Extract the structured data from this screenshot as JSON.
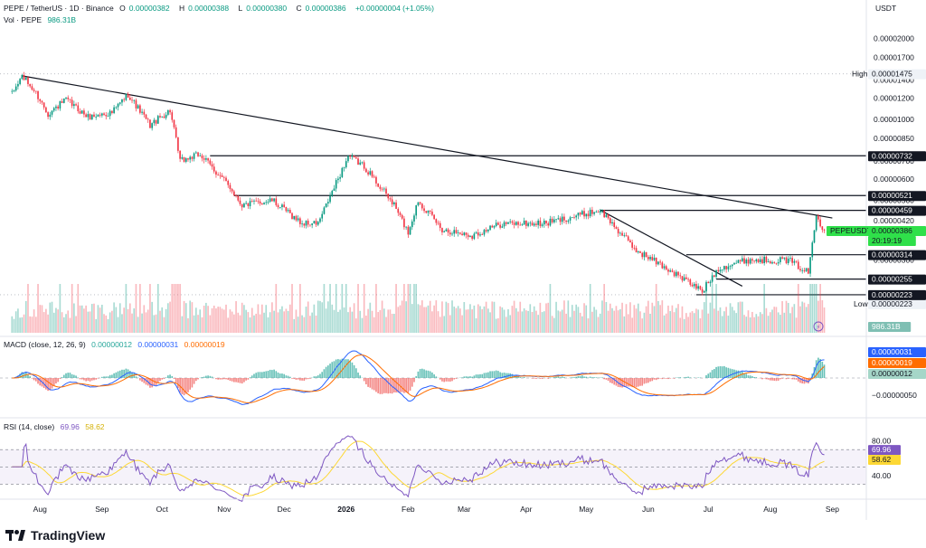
{
  "header": {
    "symbol": "PEPE / TetherUS · 1D · Binance",
    "o_label": "O",
    "o_value": "0.00000382",
    "h_label": "H",
    "h_value": "0.00000388",
    "l_label": "L",
    "l_value": "0.00000380",
    "c_label": "C",
    "c_value": "0.00000386",
    "change": "+0.00000004 (+1.05%)",
    "vol_label": "Vol · PEPE",
    "vol_value": "986.31B"
  },
  "price_axis": {
    "currency": "USDT",
    "ticks": [
      "0.00002000",
      "0.00001700",
      "0.00001400",
      "0.00001200",
      "0.00001000",
      "0.00000850",
      "0.00000700",
      "0.00000600",
      "0.00000500",
      "0.00000420",
      "0.00000360",
      "0.00000300",
      "0.00000250",
      "0.00000210"
    ],
    "high_label": "High",
    "high_value": "0.00001475",
    "low_label": "Low",
    "low_value": "0.00000223",
    "current_label": "PEPEUSDT",
    "current_value": "0.00000386",
    "countdown": "20:19:19",
    "volume_label": "986.31B"
  },
  "levels": [
    "0.00000732",
    "0.00000521",
    "0.00000459",
    "0.00000314",
    "0.00000255",
    "0.00000223"
  ],
  "macd": {
    "label": "MACD (close, 12, 26, 9)",
    "hist": "0.00000012",
    "macd_line": "0.00000031",
    "signal": "0.00000019",
    "axis_tick": "−0.00000050"
  },
  "rsi": {
    "label": "RSI (14, close)",
    "value": "69.96",
    "ma": "58.62",
    "ticks": [
      "80.00",
      "40.00"
    ]
  },
  "time_axis": [
    "Aug",
    "Sep",
    "Oct",
    "Nov",
    "Dec",
    "2026",
    "Feb",
    "Mar",
    "Apr",
    "May",
    "Jun",
    "Jul",
    "Aug",
    "Sep"
  ],
  "brand": "TradingView",
  "colors": {
    "up": "#089981",
    "down": "#f23645",
    "macd": "#2962ff",
    "signal": "#ff6d00",
    "rsi": "#7e57c2",
    "rsi_ma": "#fdd835"
  },
  "chart_data": {
    "type": "candlestick",
    "scale": "log",
    "ylim": [
      2e-06,
      2.2e-05
    ],
    "anchors": [
      {
        "x": "2025-07-18",
        "y": 1.24e-05
      },
      {
        "x": "2025-07-23",
        "y": 1.45e-05
      },
      {
        "x": "2025-07-30",
        "y": 1.25e-05
      },
      {
        "x": "2025-08-05",
        "y": 1.05e-05
      },
      {
        "x": "2025-08-14",
        "y": 1.18e-05
      },
      {
        "x": "2025-08-25",
        "y": 1.02e-05
      },
      {
        "x": "2025-09-06",
        "y": 1.06e-05
      },
      {
        "x": "2025-09-14",
        "y": 1.24e-05
      },
      {
        "x": "2025-09-25",
        "y": 9.5e-06
      },
      {
        "x": "2025-10-05",
        "y": 1.08e-05
      },
      {
        "x": "2025-10-10",
        "y": 7e-06
      },
      {
        "x": "2025-10-20",
        "y": 7.4e-06
      },
      {
        "x": "2025-11-04",
        "y": 5.6e-06
      },
      {
        "x": "2025-11-10",
        "y": 4.8e-06
      },
      {
        "x": "2025-11-25",
        "y": 5e-06
      },
      {
        "x": "2025-12-10",
        "y": 4.1e-06
      },
      {
        "x": "2025-12-18",
        "y": 4.1e-06
      },
      {
        "x": "2026-01-02",
        "y": 7.3e-06
      },
      {
        "x": "2026-01-10",
        "y": 6.7e-06
      },
      {
        "x": "2026-01-25",
        "y": 4.8e-06
      },
      {
        "x": "2026-02-01",
        "y": 3.8e-06
      },
      {
        "x": "2026-02-06",
        "y": 5e-06
      },
      {
        "x": "2026-02-18",
        "y": 3.9e-06
      },
      {
        "x": "2026-03-05",
        "y": 3.7e-06
      },
      {
        "x": "2026-03-20",
        "y": 4.1e-06
      },
      {
        "x": "2026-04-10",
        "y": 4.1e-06
      },
      {
        "x": "2026-05-08",
        "y": 4.6e-06
      },
      {
        "x": "2026-05-25",
        "y": 3.3e-06
      },
      {
        "x": "2026-06-10",
        "y": 2.8e-06
      },
      {
        "x": "2026-06-28",
        "y": 2.3e-06
      },
      {
        "x": "2026-07-06",
        "y": 2.8e-06
      },
      {
        "x": "2026-07-20",
        "y": 3e-06
      },
      {
        "x": "2026-08-10",
        "y": 3e-06
      },
      {
        "x": "2026-08-20",
        "y": 2.7e-06
      },
      {
        "x": "2026-08-24",
        "y": 4.4e-06
      },
      {
        "x": "2026-08-28",
        "y": 3.86e-06
      }
    ],
    "trendline": [
      {
        "x": "2025-07-23",
        "y": 1.45e-05
      },
      {
        "x": "2026-09-01",
        "y": 4.3e-06
      }
    ],
    "descending_support": [
      {
        "x": "2026-05-08",
        "y": 4.6e-06
      },
      {
        "x": "2026-07-18",
        "y": 2.4e-06
      }
    ],
    "horizontal_levels": [
      7.32e-06,
      5.21e-06,
      4.59e-06,
      3.14e-06,
      2.55e-06,
      2.23e-06
    ]
  }
}
